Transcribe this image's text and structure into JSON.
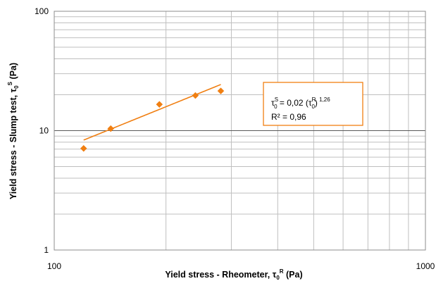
{
  "chart_data": {
    "type": "scatter",
    "title": "",
    "x_scale": "log",
    "y_scale": "log",
    "xlim": [
      100,
      1000
    ],
    "ylim": [
      1,
      100
    ],
    "grid": true,
    "x_ticks": [
      "100",
      "1000"
    ],
    "y_ticks": [
      "1",
      "10",
      "100"
    ],
    "xlabel": {
      "text": "Yield stress - Rheometer, τ",
      "sub": "0",
      "sup": "R",
      "unit": " (Pa)"
    },
    "ylabel": {
      "text": "Yield stress - Slump test, τ",
      "sub": "0",
      "sup": "S",
      "unit": " (Pa)"
    },
    "marker_color": "#F07F12",
    "series": [
      {
        "marker": "diamond",
        "x": [
          120,
          142,
          192,
          240,
          281
        ],
        "y": [
          7.1,
          10.4,
          16.6,
          19.7,
          21.5
        ]
      }
    ],
    "fit": {
      "type": "power",
      "a": 0.02,
      "b": 1.26,
      "color": "#F07F12",
      "x_range": [
        120,
        281
      ]
    },
    "annotation": {
      "line1": {
        "tau": "τ",
        "sub": "0",
        "supS": "S",
        "eq": " = 0,02 (",
        "tau2": "τ",
        "sub2": "0",
        "supR": "R",
        "close": ")",
        "exp": " 1,26"
      },
      "line2": "R² = 0,96",
      "border_color": "#F07F12"
    }
  }
}
